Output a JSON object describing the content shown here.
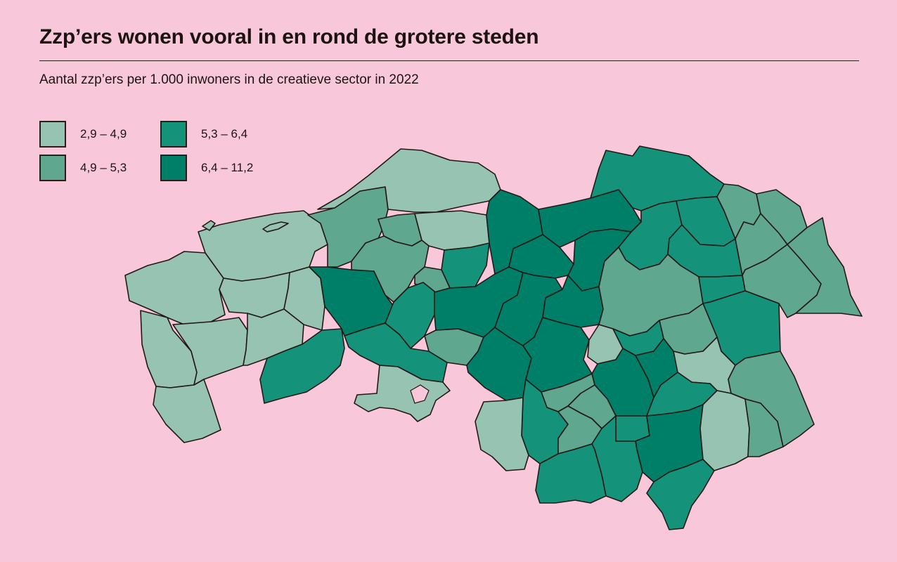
{
  "title": "Zzp’ers wonen vooral in en rond de grotere steden",
  "subtitle": "Aantal zzp’ers per 1.000 inwoners in de creatieve sector in 2022",
  "legend": [
    {
      "label": "2,9 – 4,9",
      "color": "#96c3b2"
    },
    {
      "label": "4,9 – 5,3",
      "color": "#5fa78f"
    },
    {
      "label": "5,3 – 6,4",
      "color": "#14927a"
    },
    {
      "label": "6,4 – 11,2",
      "color": "#007f68"
    }
  ],
  "colors": {
    "background": "#f8c8da",
    "border": "#231815"
  }
}
